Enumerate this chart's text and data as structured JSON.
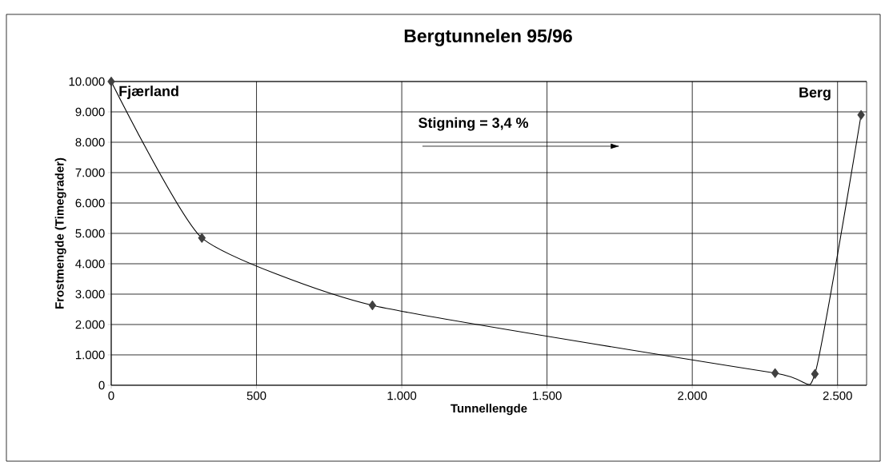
{
  "chart_data": {
    "type": "line",
    "title": "Bergtunnelen 95/96",
    "xlabel": "Tunnellengde",
    "ylabel": "Frostmengde (Timegrader)",
    "x": [
      0,
      312,
      899,
      2285,
      2422,
      2581
    ],
    "series": [
      {
        "color": "#404040",
        "values": [
          10000,
          4850,
          2630,
          400,
          370,
          8900
        ]
      }
    ],
    "xlim": [
      0,
      2600
    ],
    "ylim": [
      0,
      10000
    ],
    "xticks": [
      0,
      500,
      {
        "value": 1000,
        "label": "1.000"
      },
      {
        "value": 1500,
        "label": "1.500"
      },
      {
        "value": 2000,
        "label": "2.000"
      },
      {
        "value": 2500,
        "label": "2.500"
      }
    ],
    "yticks": [
      0,
      {
        "value": 1000,
        "label": "1.000"
      },
      {
        "value": 2000,
        "label": "2.000"
      },
      {
        "value": 3000,
        "label": "3.000"
      },
      {
        "value": 4000,
        "label": "4.000"
      },
      {
        "value": 5000,
        "label": "5.000"
      },
      {
        "value": 6000,
        "label": "6.000"
      },
      {
        "value": 7000,
        "label": "7.000"
      },
      {
        "value": 8000,
        "label": "8.000"
      },
      {
        "value": 9000,
        "label": "9.000"
      },
      {
        "value": 10000,
        "label": "10.000"
      }
    ],
    "grid": true,
    "marker": "diamond",
    "line_style": "solid",
    "annotations": [
      {
        "text": "Fjærland",
        "x": 0,
        "y": 10000
      },
      "Stigning = 3,4 %",
      {
        "text": "Berg",
        "x": 2581,
        "y": 8900
      }
    ]
  }
}
